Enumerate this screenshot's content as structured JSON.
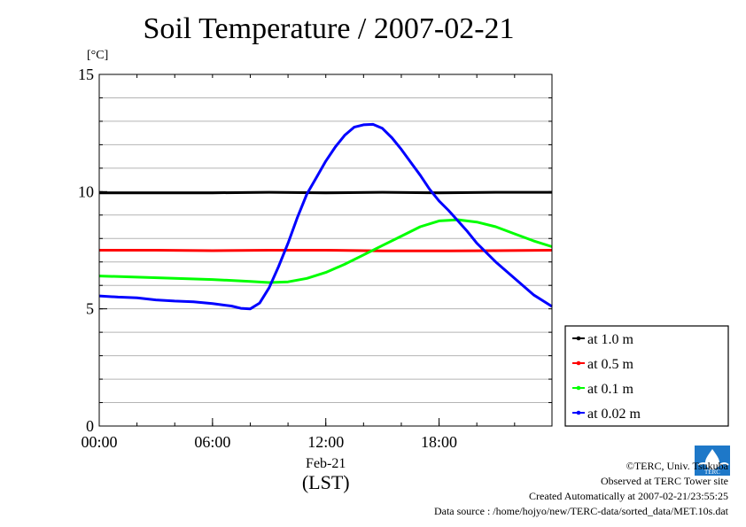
{
  "header": {
    "title": "Soil Temperature / 2007-02-21",
    "unit": "[°C]"
  },
  "footer": {
    "copyright": "©TERC, Univ. Tsukuba",
    "site": "Observed at TERC Tower site",
    "created": "Created Automatically at 2007-02-21/23:55:25",
    "source": "Data source : /home/hojyo/new/TERC-data/sorted_data/MET.10s.dat",
    "logo_text": "TERC"
  },
  "chart_data": {
    "type": "line",
    "title": "Soil Temperature / 2007-02-21",
    "ylabel": "[°C]",
    "xlabel": "(LST)",
    "x_date_label": "Feb-21",
    "ylim": [
      0,
      15
    ],
    "xlim": [
      0,
      23.98
    ],
    "y_ticks": [
      0,
      5,
      10,
      15
    ],
    "y_tick_labels": [
      "0",
      "5",
      "10",
      "15"
    ],
    "x_ticks": [
      0,
      6,
      12,
      18
    ],
    "x_tick_labels": [
      "00:00",
      "06:00",
      "12:00",
      "18:00"
    ],
    "grid": true,
    "legend_position": "bottom-right outside",
    "series": [
      {
        "name": "at 1.0 m",
        "color": "#000000",
        "x": [
          0,
          3,
          6,
          9,
          12,
          15,
          18,
          21,
          23.98
        ],
        "y": [
          9.95,
          9.95,
          9.95,
          9.97,
          9.95,
          9.97,
          9.95,
          9.97,
          9.97
        ]
      },
      {
        "name": "at 0.5 m",
        "color": "#ff0000",
        "x": [
          0,
          3,
          6,
          9,
          12,
          15,
          18,
          21,
          23.98
        ],
        "y": [
          7.5,
          7.5,
          7.48,
          7.5,
          7.5,
          7.47,
          7.47,
          7.48,
          7.5
        ]
      },
      {
        "name": "at 0.1 m",
        "color": "#00ff00",
        "x": [
          0,
          2,
          4,
          6,
          8,
          9,
          10,
          11,
          12,
          13,
          14,
          15,
          16,
          17,
          18,
          19,
          20,
          21,
          22,
          23,
          23.98
        ],
        "y": [
          6.4,
          6.35,
          6.3,
          6.25,
          6.17,
          6.12,
          6.15,
          6.3,
          6.55,
          6.9,
          7.3,
          7.7,
          8.1,
          8.5,
          8.75,
          8.8,
          8.7,
          8.5,
          8.2,
          7.9,
          7.65
        ]
      },
      {
        "name": "at 0.02 m",
        "color": "#0000ff",
        "x": [
          0,
          1,
          2,
          3,
          4,
          5,
          6,
          7,
          7.5,
          8,
          8.5,
          9,
          9.5,
          10,
          10.5,
          11,
          11.5,
          12,
          12.5,
          13,
          13.5,
          14,
          14.5,
          15,
          15.5,
          16,
          16.5,
          17,
          17.5,
          18,
          18.5,
          19,
          19.5,
          20,
          21,
          22,
          23,
          23.98
        ],
        "y": [
          5.55,
          5.5,
          5.47,
          5.38,
          5.33,
          5.3,
          5.22,
          5.12,
          5.02,
          5.0,
          5.25,
          5.9,
          6.8,
          7.8,
          8.9,
          9.9,
          10.6,
          11.3,
          11.9,
          12.4,
          12.75,
          12.85,
          12.87,
          12.7,
          12.3,
          11.8,
          11.25,
          10.7,
          10.1,
          9.6,
          9.2,
          8.75,
          8.3,
          7.8,
          7.0,
          6.3,
          5.6,
          5.1
        ]
      }
    ]
  }
}
